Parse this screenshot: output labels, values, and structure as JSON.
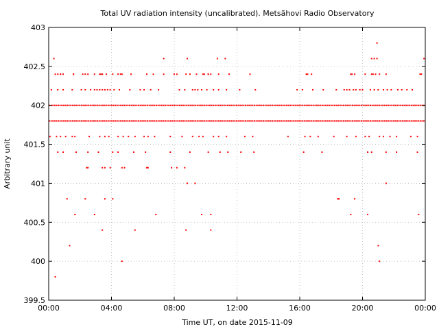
{
  "chart_data": {
    "type": "scatter",
    "title": "Total UV radiation intensity (uncalibrated). Metsähovi Radio Observatory",
    "xlabel": "Time UT, on date 2015-11-09",
    "ylabel": "Arbitrary unit",
    "xlim": [
      0,
      24
    ],
    "ylim": [
      399.5,
      403
    ],
    "x_tick_values": [
      0,
      4,
      8,
      12,
      16,
      20,
      24
    ],
    "x_tick_labels": [
      "00:00",
      "04:00",
      "08:00",
      "12:00",
      "16:00",
      "20:00",
      "00:00"
    ],
    "y_tick_values": [
      399.5,
      400,
      400.5,
      401,
      401.5,
      402,
      402.5,
      403
    ],
    "y_tick_labels": [
      "399.5",
      "400",
      "400.5",
      "401",
      "401.5",
      "402",
      "402.5",
      "403"
    ],
    "grid": true,
    "legend": "none",
    "marker_color": "#ff0000",
    "dense_bands": [
      {
        "y": 401.8,
        "x_range": [
          0,
          24
        ]
      },
      {
        "y": 402.0,
        "x_range": [
          0,
          24
        ]
      }
    ],
    "series": [
      {
        "x": [
          0.33,
          0.75,
          1.58,
          2.17,
          2.5,
          3.33,
          4.08,
          4.42,
          5.25,
          6.67,
          8.17,
          9.0,
          9.42,
          10.17,
          11.5,
          12.83,
          16.5,
          19.25,
          20.17,
          20.83,
          21.5,
          23.67,
          0.17,
          0.58,
          0.92,
          1.5,
          2.08,
          2.33,
          2.67,
          2.92,
          3.08,
          3.25,
          3.42,
          3.58,
          3.75,
          3.92,
          4.17,
          4.5,
          5.17,
          5.83,
          6.08,
          6.5,
          7.0,
          8.33,
          8.67,
          9.17,
          9.33,
          9.5,
          9.75,
          10.08,
          10.5,
          10.83,
          11.33,
          12.17,
          13.17,
          15.83,
          16.17,
          16.83,
          17.5,
          18.33,
          18.83,
          19.0,
          19.17,
          19.42,
          19.58,
          19.83,
          20.0,
          20.5,
          20.75,
          21.0,
          21.33,
          21.58,
          21.83,
          22.25,
          22.5,
          22.83,
          23.17,
          0.42,
          0.58,
          0.75,
          0.92,
          1.58,
          2.33,
          2.92,
          3.25,
          3.42,
          3.67,
          4.58,
          4.67,
          6.25,
          7.33,
          8.0,
          8.75,
          9.83,
          9.92,
          10.17,
          10.33,
          10.83,
          16.42,
          16.75,
          19.33,
          19.5,
          20.58,
          20.67,
          21.08,
          23.75,
          7.33,
          8.83,
          10.75,
          11.25,
          20.58,
          20.75,
          20.92,
          23.92,
          20.92,
          0.08,
          0.5,
          0.75,
          1.08,
          1.5,
          1.67,
          2.58,
          3.25,
          3.58,
          3.83,
          4.42,
          4.75,
          5.08,
          5.5,
          6.08,
          6.33,
          6.75,
          7.75,
          8.5,
          9.17,
          9.58,
          9.83,
          10.5,
          10.83,
          11.33,
          12.5,
          13.0,
          15.25,
          16.33,
          16.67,
          17.17,
          18.17,
          19.0,
          19.58,
          20.17,
          20.42,
          21.08,
          21.33,
          21.75,
          22.17,
          23.08,
          23.5,
          0.58,
          0.92,
          1.75,
          2.5,
          3.17,
          4.08,
          4.42,
          5.42,
          6.17,
          7.75,
          9.0,
          10.17,
          10.92,
          11.42,
          12.25,
          13.08,
          16.25,
          17.42,
          20.33,
          20.58,
          21.5,
          22.17,
          23.5,
          2.42,
          2.5,
          3.42,
          3.58,
          3.92,
          4.67,
          4.83,
          6.25,
          6.33,
          7.83,
          8.17,
          8.67,
          8.83,
          9.33,
          21.5,
          1.17,
          2.33,
          3.58,
          4.08,
          18.42,
          18.5,
          19.5,
          1.67,
          2.92,
          6.83,
          9.75,
          10.33,
          19.25,
          20.33,
          23.58,
          3.42,
          5.5,
          8.75,
          10.33,
          1.33,
          21.0,
          4.67,
          21.08,
          0.42
        ],
        "y": [
          402.6,
          402.4,
          402.4,
          402.4,
          402.4,
          402.4,
          402.4,
          402.4,
          402.4,
          402.4,
          402.4,
          402.4,
          402.4,
          402.4,
          402.4,
          402.4,
          402.4,
          402.4,
          402.4,
          402.4,
          402.4,
          402.4,
          402.2,
          402.2,
          402.2,
          402.2,
          402.2,
          402.2,
          402.2,
          402.2,
          402.2,
          402.2,
          402.2,
          402.2,
          402.2,
          402.2,
          402.2,
          402.2,
          402.2,
          402.2,
          402.2,
          402.2,
          402.2,
          402.2,
          402.2,
          402.2,
          402.2,
          402.2,
          402.2,
          402.2,
          402.2,
          402.2,
          402.2,
          402.2,
          402.2,
          402.2,
          402.2,
          402.2,
          402.2,
          402.2,
          402.2,
          402.2,
          402.2,
          402.2,
          402.2,
          402.2,
          402.2,
          402.2,
          402.2,
          402.2,
          402.2,
          402.2,
          402.2,
          402.2,
          402.2,
          402.2,
          402.2,
          402.4,
          402.4,
          402.4,
          402.4,
          402.4,
          402.4,
          402.4,
          402.4,
          402.4,
          402.4,
          402.4,
          402.4,
          402.4,
          402.4,
          402.4,
          402.4,
          402.4,
          402.4,
          402.4,
          402.4,
          402.4,
          402.4,
          402.4,
          402.4,
          402.4,
          402.4,
          402.4,
          402.4,
          402.4,
          402.6,
          402.6,
          402.6,
          402.6,
          402.6,
          402.6,
          402.6,
          402.6,
          402.8,
          401.6,
          401.6,
          401.6,
          401.6,
          401.6,
          401.6,
          401.6,
          401.6,
          401.6,
          401.6,
          401.6,
          401.6,
          401.6,
          401.6,
          401.6,
          401.6,
          401.6,
          401.6,
          401.6,
          401.6,
          401.6,
          401.6,
          401.6,
          401.6,
          401.6,
          401.6,
          401.6,
          401.6,
          401.6,
          401.6,
          401.6,
          401.6,
          401.6,
          401.6,
          401.6,
          401.6,
          401.6,
          401.6,
          401.6,
          401.6,
          401.6,
          401.6,
          401.4,
          401.4,
          401.4,
          401.4,
          401.4,
          401.4,
          401.4,
          401.4,
          401.4,
          401.4,
          401.4,
          401.4,
          401.4,
          401.4,
          401.4,
          401.4,
          401.4,
          401.4,
          401.4,
          401.4,
          401.4,
          401.4,
          401.4,
          401.2,
          401.2,
          401.2,
          401.2,
          401.2,
          401.2,
          401.2,
          401.2,
          401.2,
          401.2,
          401.2,
          401.2,
          401.0,
          401.0,
          401.0,
          400.8,
          400.8,
          400.8,
          400.8,
          400.8,
          400.8,
          400.8,
          400.6,
          400.6,
          400.6,
          400.6,
          400.6,
          400.6,
          400.6,
          400.6,
          400.4,
          400.4,
          400.4,
          400.4,
          400.2,
          400.2,
          400.0,
          400.0,
          399.8
        ]
      }
    ]
  }
}
